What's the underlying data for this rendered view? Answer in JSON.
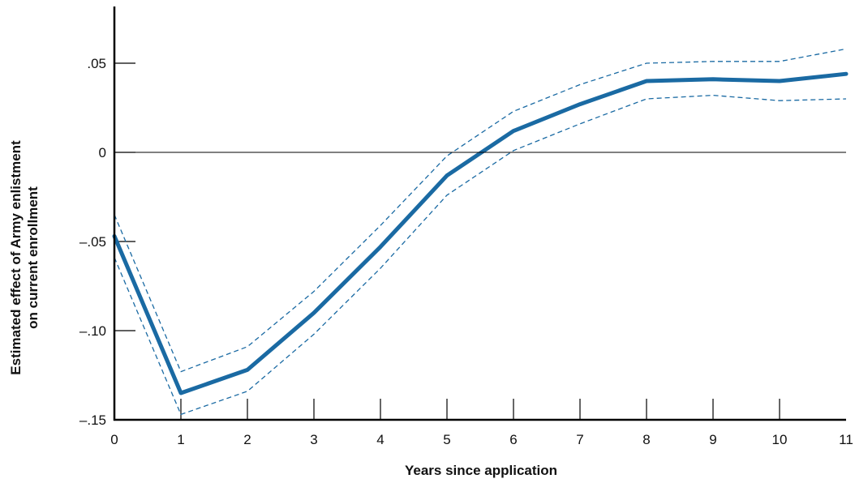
{
  "chart_data": {
    "type": "line",
    "title": "",
    "xlabel": "Years since application",
    "ylabel_lines": [
      "Estimated effect of Army enlistment",
      "on current enrollment"
    ],
    "x": [
      0,
      1,
      2,
      3,
      4,
      5,
      6,
      7,
      8,
      9,
      10,
      11
    ],
    "xlim": [
      0,
      11
    ],
    "ylim": [
      -0.15,
      0.08
    ],
    "x_ticks": [
      {
        "value": 0,
        "label": "0"
      },
      {
        "value": 1,
        "label": "1"
      },
      {
        "value": 2,
        "label": "2"
      },
      {
        "value": 3,
        "label": "3"
      },
      {
        "value": 4,
        "label": "4"
      },
      {
        "value": 5,
        "label": "5"
      },
      {
        "value": 6,
        "label": "6"
      },
      {
        "value": 7,
        "label": "7"
      },
      {
        "value": 8,
        "label": "8"
      },
      {
        "value": 9,
        "label": "9"
      },
      {
        "value": 10,
        "label": "10"
      },
      {
        "value": 11,
        "label": "11"
      }
    ],
    "y_ticks": [
      {
        "value": 0.05,
        "label": ".05"
      },
      {
        "value": 0,
        "label": "0"
      },
      {
        "value": -0.05,
        "label": "–.05"
      },
      {
        "value": -0.1,
        "label": "–.10"
      },
      {
        "value": -0.15,
        "label": "–.15"
      }
    ],
    "zero_line": true,
    "grid": false,
    "series": [
      {
        "style": "solid",
        "color": "#1a6aa3",
        "values": [
          -0.047,
          -0.135,
          -0.122,
          -0.09,
          -0.053,
          -0.013,
          0.012,
          0.027,
          0.04,
          0.041,
          0.04,
          0.044
        ]
      },
      {
        "style": "dashed",
        "color": "#1a6aa3",
        "values": [
          -0.035,
          -0.123,
          -0.109,
          -0.078,
          -0.041,
          -0.002,
          0.023,
          0.038,
          0.05,
          0.051,
          0.051,
          0.058
        ]
      },
      {
        "style": "dashed",
        "color": "#1a6aa3",
        "values": [
          -0.059,
          -0.147,
          -0.134,
          -0.102,
          -0.065,
          -0.024,
          0.001,
          0.016,
          0.03,
          0.032,
          0.029,
          0.03
        ]
      }
    ]
  }
}
